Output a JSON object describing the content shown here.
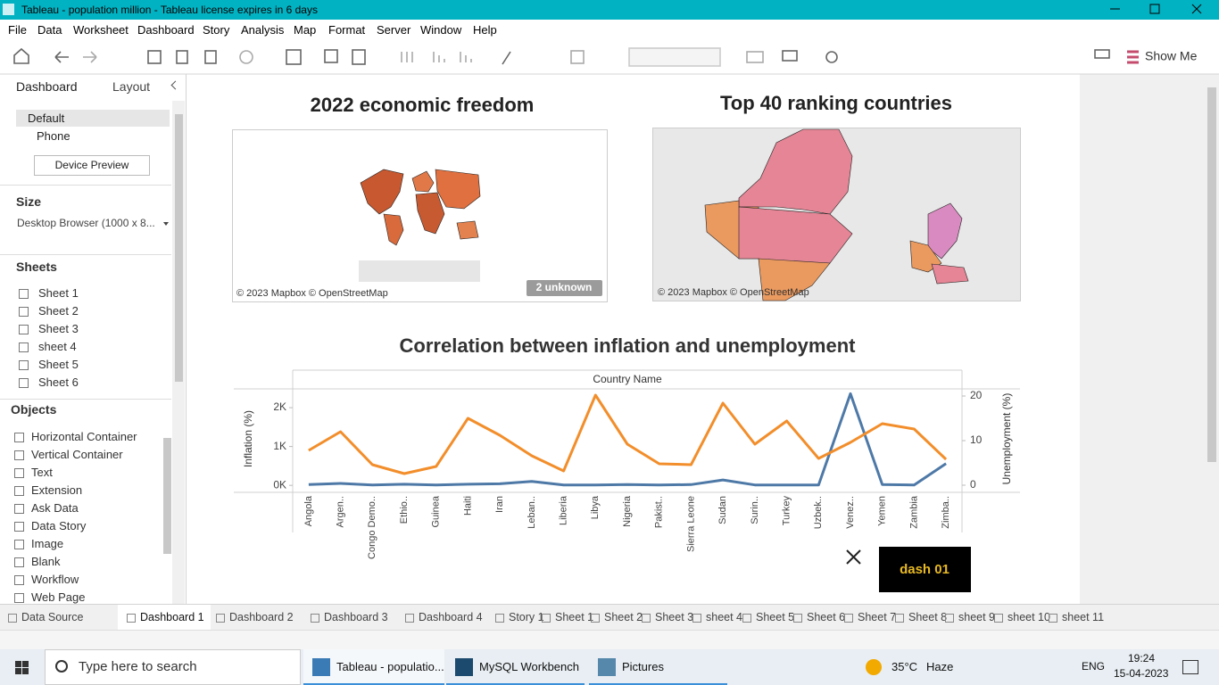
{
  "window": {
    "title": "Tableau - population million - Tableau license expires in 6 days"
  },
  "menu": [
    "File",
    "Data",
    "Worksheet",
    "Dashboard",
    "Story",
    "Analysis",
    "Map",
    "Format",
    "Server",
    "Window",
    "Help"
  ],
  "toolbar": {
    "show_me": "Show Me"
  },
  "sidebar": {
    "tabs": [
      "Dashboard",
      "Layout"
    ],
    "devices": [
      "Default",
      "Phone"
    ],
    "device_preview": "Device Preview",
    "size_heading": "Size",
    "size_value": "Desktop Browser (1000 x 8...",
    "sheets_heading": "Sheets",
    "sheets": [
      "Sheet 1",
      "Sheet 2",
      "Sheet 3",
      "sheet 4",
      "Sheet 5",
      "Sheet 6"
    ],
    "objects_heading": "Objects",
    "objects": [
      "Horizontal Container",
      "Vertical Container",
      "Text",
      "Extension",
      "Ask Data",
      "Data Story",
      "Image",
      "Blank",
      "Workflow",
      "Web Page"
    ]
  },
  "dashboard": {
    "maps": [
      {
        "title": "2022 economic freedom",
        "attribution": "© 2023 Mapbox © OpenStreetMap",
        "badge": "2 unknown"
      },
      {
        "title": "Top 40 ranking countries",
        "attribution": "© 2023 Mapbox © OpenStreetMap"
      }
    ],
    "button": "dash 01"
  },
  "chart_data": {
    "type": "line",
    "title": "Correlation between inflation and unemployment",
    "x_label": "Country Name",
    "y_label": "Inflation (%)",
    "y2_label": "Unemployment (%)",
    "categories": [
      "Angola",
      "Argen..",
      "Congo Demo..",
      "Ethio..",
      "Guinea",
      "Haiti",
      "Iran",
      "Leban..",
      "Liberia",
      "Libya",
      "Nigeria",
      "Pakist..",
      "Sierra Leone",
      "Sudan",
      "Surin..",
      "Turkey",
      "Uzbek..",
      "Venez..",
      "Yemen",
      "Zambia",
      "Zimba.."
    ],
    "series": [
      {
        "color": "#4e79a7",
        "axis": "y",
        "values": [
          20,
          50,
          10,
          30,
          10,
          30,
          40,
          100,
          10,
          10,
          20,
          10,
          20,
          140,
          10,
          10,
          10,
          2360,
          20,
          10,
          560
        ]
      },
      {
        "color": "#f28e2b",
        "axis": "y2",
        "values": [
          7.8,
          12,
          4.6,
          2.6,
          4.2,
          15,
          11.2,
          6.6,
          3.2,
          20.2,
          9.2,
          4.8,
          4.6,
          18.4,
          9.2,
          14.4,
          6,
          9.6,
          13.8,
          12.6,
          5.8
        ]
      }
    ],
    "ylim": [
      -180,
      2460
    ],
    "yticks": [
      {
        "value": 0,
        "label": "0K"
      },
      {
        "value": 1000,
        "label": "1K"
      },
      {
        "value": 2000,
        "label": "2K"
      }
    ],
    "y2lim": [
      -1.6,
      21.4
    ],
    "y2ticks": [
      0,
      10,
      20
    ]
  },
  "tabs": [
    "Data Source",
    "Dashboard 1",
    "Dashboard 2",
    "Dashboard 3",
    "Dashboard 4",
    "Story 1",
    "Sheet 1",
    "Sheet 2",
    "Sheet 3",
    "sheet 4",
    "Sheet 5",
    "Sheet 6",
    "Sheet 7",
    "Sheet 8",
    "sheet 9",
    "sheet 10",
    "sheet 11"
  ],
  "taskbar": {
    "search": "Type here to search",
    "apps": [
      "Tableau - populatio...",
      "MySQL Workbench",
      "Pictures"
    ],
    "temperature": "35°C",
    "weather": "Haze",
    "language": "ENG",
    "time": "19:24",
    "date": "15-04-2023"
  }
}
